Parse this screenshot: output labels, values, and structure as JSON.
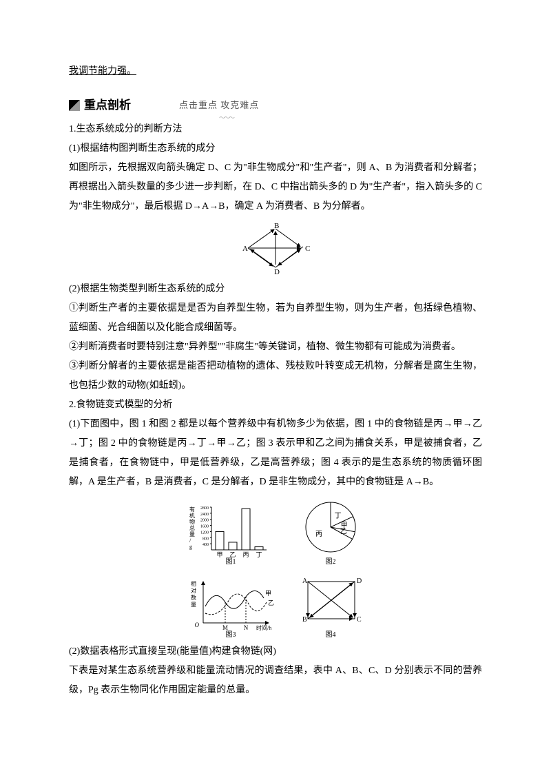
{
  "topline": "我调节能力强。",
  "header": {
    "title": "重点剖析",
    "subtitle": "点击重点  攻克难点"
  },
  "h1": "1.生态系统成分的判断方法",
  "h1_1": "(1)根据结构图判断生态系统的成分",
  "p1": "如图所示，先根据双向箭头确定 D、C 为\"非生物成分\"和\"生产者\"，则 A、B 为消费者和分解者；再根据出入箭头数量的多少进一步判断，在 D、C 中指出箭头多的 D 为\"生产者\"，指入箭头多的 C 为\"非生物成分\"，最后根据 D→A→B，确定 A 为消费者、B 为分解者。",
  "diamond": {
    "labels": {
      "A": "A",
      "B": "B",
      "C": "C",
      "D": "D"
    }
  },
  "h1_2": "(2)根据生物类型判断生态系统的成分",
  "p2": "①判断生产者的主要依据是是否为自养型生物，若为自养型生物，则为生产者，包括绿色植物、蓝细菌、光合细菌以及化能合成细菌等。",
  "p3": "②判断消费者时要特别注意\"异养型\"\"非腐生\"等关键词，植物、微生物都有可能成为消费者。",
  "p4": "③判断分解者的主要依据是能否把动植物的遗体、残枝败叶转变成无机物，分解者是腐生生物，也包括少数的动物(如蚯蚓)。",
  "h2": "2.食物链变式模型的分析",
  "p5": "(1)下面图中，图 1 和图 2 都是以每个营养级中有机物多少为依据，图 1 中的食物链是丙→甲→乙→丁；图 2 中的食物链是丙→丁→甲→乙；图 3 表示甲和乙之间为捕食关系，甲是被捕食者，乙是捕食者，在食物链中，甲是低营养级，乙是高营养级；图 4 表示的是生态系统的物质循环图解，A 是生产者，B 是消费者，C 是分解者，D 是非生物成分，其中的食物链是 A→B。",
  "fig1": {
    "ylabel": "有机物总量/g",
    "yticks": [
      "400",
      "800",
      "1200",
      "1600",
      "2000",
      "2400",
      "2800"
    ],
    "cats": [
      "甲",
      "乙",
      "丙",
      "丁"
    ],
    "vals": [
      1200,
      500,
      2700,
      200
    ],
    "ymax": 2800,
    "cap": "图1",
    "bar_color": "#ffffff",
    "border": "#000000"
  },
  "fig2": {
    "slices": [
      {
        "label": "丁",
        "frac": 0.18
      },
      {
        "label": "甲",
        "frac": 0.1
      },
      {
        "label": "乙",
        "frac": 0.05
      },
      {
        "label": "丙",
        "frac": 0.67
      }
    ],
    "cap": "图2"
  },
  "fig3": {
    "ylabel": "相对数量",
    "xlabel": "时间/h",
    "marks": {
      "M": "M",
      "N": "N",
      "jia": "甲",
      "yi": "乙"
    },
    "cap": "图3"
  },
  "fig4": {
    "labels": {
      "A": "A",
      "B": "B",
      "C": "C",
      "D": "D"
    },
    "cap": "图4"
  },
  "p6": "(2)数据表格形式直接呈现(能量值)构建食物链(网)",
  "p7": "下表是对某生态系统营养级和能量流动情况的调查结果，表中 A、B、C、D 分别表示不同的营养级，Pg 表示生物同化作用固定能量的总量。"
}
